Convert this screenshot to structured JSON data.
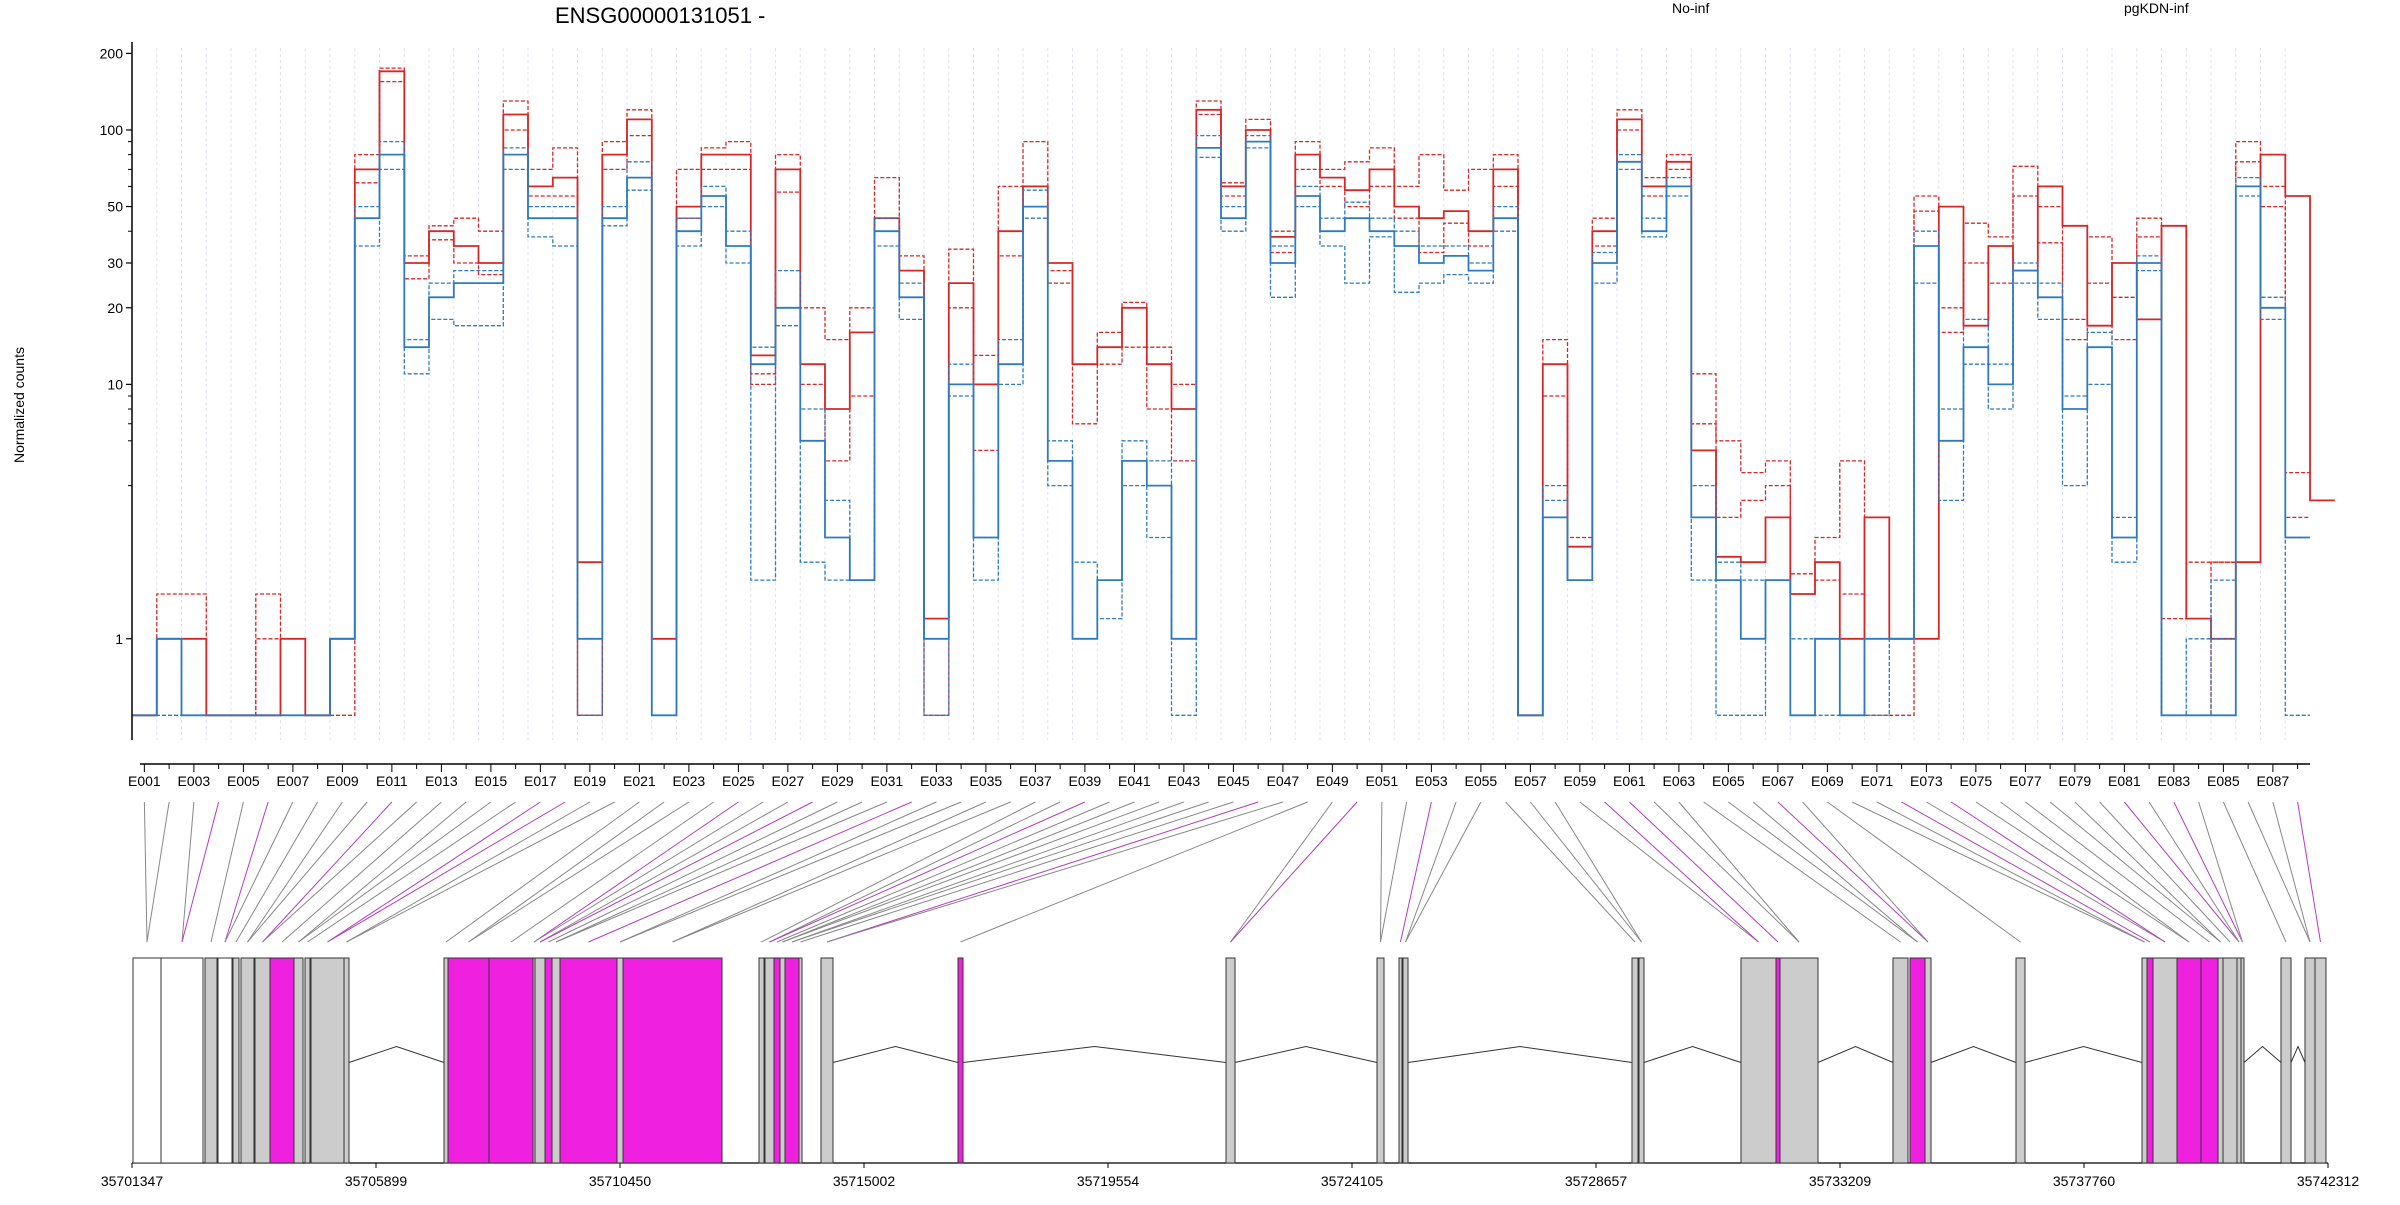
{
  "chart_data": {
    "type": "line",
    "title": "ENSG00000131051 -",
    "ylabel": "Normalized counts",
    "y_scale": "log",
    "ylim": [
      0.4,
      210
    ],
    "y_ticks": [
      1,
      10,
      20,
      30,
      50,
      100,
      200
    ],
    "grid": "vertical dotted per exon",
    "legend_placement": "top-right",
    "exon_labels": [
      "E001",
      "E003",
      "E005",
      "E007",
      "E009",
      "E011",
      "E013",
      "E015",
      "E017",
      "E019",
      "E021",
      "E023",
      "E025",
      "E027",
      "E029",
      "E031",
      "E033",
      "E035",
      "E037",
      "E039",
      "E041",
      "E043",
      "E045",
      "E047",
      "E049",
      "E051",
      "E053",
      "E055",
      "E057",
      "E059",
      "E061",
      "E063",
      "E065",
      "E067",
      "E069",
      "E071",
      "E073",
      "E075",
      "E077",
      "E079",
      "E081",
      "E083",
      "E085",
      "E087"
    ],
    "genomic_positions": [
      "35701347",
      "35705899",
      "35710450",
      "35715002",
      "35719554",
      "35724105",
      "35728657",
      "35733209",
      "35737760",
      "35742312"
    ],
    "series": [
      {
        "name": "No-inf",
        "color": "#d62728",
        "group": "No-inf",
        "style": "solid",
        "values": [
          0.5,
          1,
          1,
          0.5,
          0.5,
          0.5,
          1,
          0.5,
          1,
          70,
          170,
          30,
          40,
          35,
          30,
          115,
          60,
          65,
          2,
          80,
          110,
          1,
          50,
          80,
          80,
          13,
          70,
          12,
          8,
          16,
          45,
          28,
          1.2,
          25,
          10,
          40,
          60,
          30,
          12,
          14,
          20,
          12,
          8,
          120,
          60,
          100,
          38,
          80,
          65,
          58,
          70,
          50,
          45,
          48,
          40,
          70,
          0.5,
          12,
          2.3,
          40,
          110,
          60,
          75,
          5.5,
          2.1,
          2,
          3,
          1.5,
          2,
          1,
          3,
          1,
          1,
          50,
          17,
          35,
          28,
          60,
          42,
          17,
          30,
          18,
          42,
          1.2,
          1,
          2,
          80,
          55,
          3.5
        ]
      },
      {
        "name": "No-inf",
        "color": "#d62728",
        "group": "No-inf",
        "style": "dashed",
        "values": [
          0.5,
          1.5,
          1.5,
          0.5,
          0.5,
          1.5,
          1,
          0.5,
          1,
          80,
          175,
          32,
          42,
          45,
          40,
          130,
          70,
          85,
          0.5,
          90,
          120,
          1,
          70,
          85,
          90,
          10,
          80,
          20,
          15,
          20,
          65,
          32,
          1,
          34,
          13,
          60,
          90,
          28,
          12,
          16,
          21,
          14,
          10,
          130,
          62,
          110,
          40,
          90,
          70,
          75,
          85,
          60,
          80,
          58,
          70,
          80,
          0.5,
          15,
          2.5,
          45,
          120,
          65,
          80,
          11,
          6,
          4.5,
          5,
          1.8,
          2.5,
          5,
          1,
          1,
          55,
          20,
          43,
          38,
          72,
          50,
          18,
          38,
          22,
          45,
          1.2,
          2,
          2,
          90,
          60,
          4.5
        ]
      },
      {
        "name": "No-inf",
        "color": "#d62728",
        "group": "No-inf",
        "style": "dashed",
        "values": [
          0.5,
          1,
          1,
          0.5,
          0.5,
          1,
          0.5,
          0.5,
          0.5,
          62,
          155,
          26,
          37,
          30,
          27,
          100,
          55,
          55,
          0.5,
          70,
          95,
          1,
          45,
          70,
          70,
          11,
          57,
          10,
          5,
          9,
          40,
          22,
          0.5,
          20,
          5.5,
          32,
          50,
          25,
          7,
          12,
          14,
          8,
          5,
          115,
          55,
          90,
          33,
          70,
          60,
          50,
          60,
          45,
          33,
          43,
          35,
          60,
          0.5,
          9,
          1.7,
          35,
          100,
          55,
          70,
          7,
          3,
          3.5,
          4,
          1.5,
          1.7,
          1.5,
          0.5,
          0.5,
          48,
          16,
          30,
          25,
          55,
          36,
          15,
          25,
          15,
          38,
          0.5,
          0.5,
          2,
          75,
          50,
          3
        ]
      },
      {
        "name": "pgKDN-inf",
        "color": "#2f7bbd",
        "group": "pgKDN-inf",
        "style": "solid",
        "values": [
          0.5,
          1,
          0.5,
          0.5,
          0.5,
          0.5,
          0.5,
          0.5,
          1,
          45,
          80,
          14,
          22,
          25,
          25,
          80,
          45,
          45,
          1,
          45,
          65,
          0.5,
          40,
          55,
          35,
          12,
          20,
          6,
          2.5,
          1.7,
          40,
          22,
          1,
          10,
          2.5,
          12,
          50,
          5,
          1,
          1.7,
          5,
          4,
          1,
          85,
          45,
          90,
          30,
          55,
          40,
          45,
          40,
          35,
          30,
          32,
          28,
          45,
          0.5,
          3,
          1.7,
          30,
          75,
          40,
          60,
          3,
          1.7,
          1,
          1.7,
          0.5,
          1,
          0.5,
          1,
          1,
          35,
          6,
          14,
          10,
          28,
          22,
          8,
          14,
          2.5,
          30,
          0.5,
          0.5,
          0.5,
          60,
          20,
          2.5
        ]
      },
      {
        "name": "pgKDN-inf",
        "color": "#2f7bbd",
        "group": "pgKDN-inf",
        "style": "dashed",
        "values": [
          0.5,
          1,
          0.5,
          0.5,
          0.5,
          0.5,
          0.5,
          0.5,
          1,
          50,
          90,
          15,
          25,
          28,
          28,
          85,
          50,
          50,
          1,
          50,
          75,
          0.5,
          45,
          60,
          40,
          14,
          28,
          8,
          3.5,
          1.7,
          45,
          25,
          1,
          12,
          2.5,
          15,
          58,
          6,
          2,
          1.7,
          6,
          5,
          1,
          95,
          50,
          95,
          35,
          60,
          45,
          52,
          45,
          40,
          35,
          35,
          30,
          50,
          0.5,
          4,
          1.7,
          33,
          80,
          45,
          65,
          4,
          2,
          1.7,
          1.7,
          1,
          1,
          0.5,
          1,
          1,
          40,
          8,
          18,
          12,
          30,
          25,
          9,
          16,
          3,
          32,
          0.5,
          1,
          1.7,
          65,
          22,
          2.5
        ]
      },
      {
        "name": "pgKDN-inf",
        "color": "#2f7bbd",
        "group": "pgKDN-inf",
        "style": "dashed",
        "values": [
          0.5,
          0.5,
          0.5,
          0.5,
          0.5,
          0.5,
          0.5,
          0.5,
          1,
          35,
          70,
          11,
          18,
          17,
          17,
          70,
          38,
          35,
          0.5,
          42,
          58,
          0.5,
          35,
          50,
          30,
          1.7,
          17,
          2,
          1.7,
          1.7,
          35,
          18,
          0.5,
          9,
          1.7,
          10,
          45,
          4,
          1,
          1.2,
          4,
          2.5,
          0.5,
          78,
          40,
          85,
          22,
          50,
          35,
          25,
          38,
          23,
          25,
          27,
          25,
          40,
          0.5,
          3.5,
          1.7,
          25,
          70,
          38,
          55,
          1.7,
          0.5,
          0.5,
          1.7,
          0.5,
          0.5,
          0.5,
          0.5,
          1,
          25,
          3.5,
          12,
          8,
          25,
          18,
          4,
          10,
          2,
          28,
          0.5,
          0.5,
          1,
          55,
          18,
          0.5
        ]
      }
    ]
  },
  "legend": [
    {
      "label": "No-inf",
      "color": "#d62728"
    },
    {
      "label": "pgKDN-inf",
      "color": "#2f7bbd"
    }
  ],
  "colors": {
    "gene_model_grey": "#cccccc",
    "gene_model_highlight": "#f020e0",
    "connector_grey": "#888888",
    "connector_highlight": "#b23cc0"
  }
}
